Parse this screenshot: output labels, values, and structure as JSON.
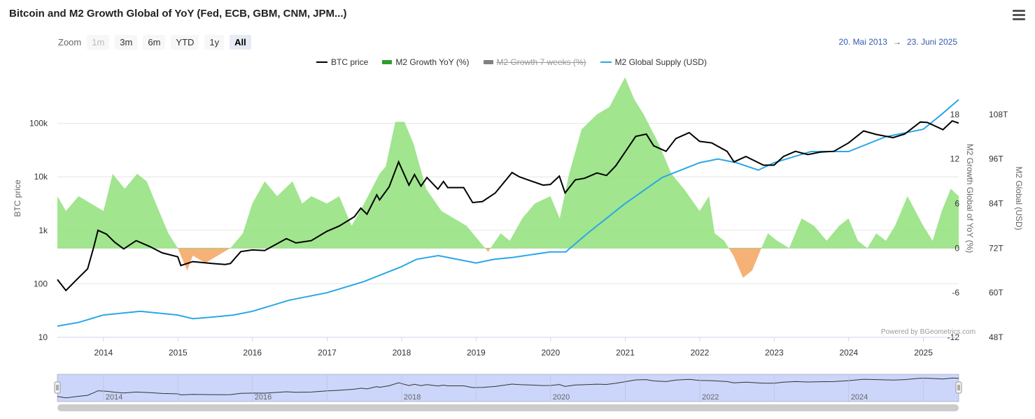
{
  "header": {
    "title": "Bitcoin and M2 Growth Global of YoY (Fed, ECB, GBM, CNM, JPM...)"
  },
  "zoom": {
    "label": "Zoom",
    "buttons": [
      {
        "label": "1m",
        "state": "disabled"
      },
      {
        "label": "3m",
        "state": "normal"
      },
      {
        "label": "6m",
        "state": "normal"
      },
      {
        "label": "YTD",
        "state": "normal"
      },
      {
        "label": "1y",
        "state": "normal"
      },
      {
        "label": "All",
        "state": "active"
      }
    ]
  },
  "range": {
    "from": "20. Mai 2013",
    "arrow": "→",
    "to": "23. Juni 2025"
  },
  "credit": "Powered by BGeometrics.com",
  "chart_data": {
    "type": "line",
    "title": "Bitcoin and M2 Growth Global of YoY (Fed, ECB, GBM, CNM, JPM...)",
    "legend_position": "top-center",
    "grid": true,
    "x_axis": {
      "type": "date",
      "range": [
        "2013-05-20",
        "2025-06-23"
      ],
      "tick_labels": [
        "2014",
        "2015",
        "2016",
        "2017",
        "2018",
        "2019",
        "2020",
        "2021",
        "2022",
        "2023",
        "2024",
        "2025"
      ]
    },
    "y_axes": [
      {
        "id": "btc",
        "label": "BTC price",
        "scale": "log",
        "side": "left",
        "range": [
          10,
          1000000
        ],
        "tick_labels": [
          "10",
          "100",
          "1k",
          "10k",
          "100k"
        ]
      },
      {
        "id": "m2yoy",
        "label": "M2 Growth Global of YoY (%)",
        "scale": "linear",
        "side": "right",
        "range": [
          -12,
          24
        ],
        "tick_labels": [
          "-12",
          "-6",
          "0",
          "6",
          "12",
          "18"
        ]
      },
      {
        "id": "m2supply",
        "label": "M2 Global (USD)",
        "scale": "linear",
        "side": "right",
        "range": [
          48,
          120
        ],
        "unit": "T",
        "tick_labels": [
          "48T",
          "60T",
          "72T",
          "84T",
          "96T",
          "108T"
        ]
      }
    ],
    "series": [
      {
        "name": "BTC price",
        "axis": "btc",
        "type": "line",
        "color": "#000000",
        "visible": true,
        "points": [
          [
            "2013-05-20",
            120
          ],
          [
            "2013-07-01",
            75
          ],
          [
            "2013-09-01",
            130
          ],
          [
            "2013-10-15",
            190
          ],
          [
            "2013-11-15",
            500
          ],
          [
            "2013-12-05",
            1000
          ],
          [
            "2014-01-15",
            850
          ],
          [
            "2014-02-25",
            600
          ],
          [
            "2014-04-10",
            450
          ],
          [
            "2014-06-10",
            640
          ],
          [
            "2014-08-15",
            500
          ],
          [
            "2014-10-15",
            380
          ],
          [
            "2014-12-31",
            320
          ],
          [
            "2015-01-15",
            220
          ],
          [
            "2015-03-15",
            260
          ],
          [
            "2015-06-15",
            240
          ],
          [
            "2015-08-20",
            230
          ],
          [
            "2015-09-15",
            240
          ],
          [
            "2015-11-05",
            400
          ],
          [
            "2015-12-31",
            430
          ],
          [
            "2016-03-01",
            420
          ],
          [
            "2016-06-15",
            700
          ],
          [
            "2016-08-01",
            580
          ],
          [
            "2016-10-15",
            640
          ],
          [
            "2016-12-31",
            960
          ],
          [
            "2017-03-01",
            1200
          ],
          [
            "2017-05-15",
            1800
          ],
          [
            "2017-06-15",
            2600
          ],
          [
            "2017-07-15",
            2000
          ],
          [
            "2017-09-01",
            4600
          ],
          [
            "2017-09-15",
            3700
          ],
          [
            "2017-11-01",
            6500
          ],
          [
            "2017-12-17",
            19000
          ],
          [
            "2018-02-06",
            7000
          ],
          [
            "2018-03-05",
            11000
          ],
          [
            "2018-04-06",
            6700
          ],
          [
            "2018-05-05",
            9700
          ],
          [
            "2018-06-28",
            5900
          ],
          [
            "2018-07-25",
            8200
          ],
          [
            "2018-08-15",
            6300
          ],
          [
            "2018-11-01",
            6300
          ],
          [
            "2018-12-15",
            3300
          ],
          [
            "2019-02-01",
            3450
          ],
          [
            "2019-04-05",
            5000
          ],
          [
            "2019-06-26",
            12000
          ],
          [
            "2019-08-01",
            10000
          ],
          [
            "2019-09-30",
            8300
          ],
          [
            "2019-11-25",
            7000
          ],
          [
            "2019-12-31",
            7200
          ],
          [
            "2020-02-13",
            10300
          ],
          [
            "2020-03-12",
            5000
          ],
          [
            "2020-05-01",
            8800
          ],
          [
            "2020-06-15",
            9400
          ],
          [
            "2020-08-15",
            11800
          ],
          [
            "2020-10-01",
            10600
          ],
          [
            "2020-11-15",
            16000
          ],
          [
            "2020-12-31",
            29000
          ],
          [
            "2021-02-21",
            57000
          ],
          [
            "2021-04-14",
            63000
          ],
          [
            "2021-05-20",
            38000
          ],
          [
            "2021-07-20",
            30000
          ],
          [
            "2021-09-06",
            52000
          ],
          [
            "2021-11-10",
            67000
          ],
          [
            "2021-12-31",
            46000
          ],
          [
            "2022-03-01",
            43000
          ],
          [
            "2022-05-15",
            30000
          ],
          [
            "2022-06-18",
            19000
          ],
          [
            "2022-08-15",
            24000
          ],
          [
            "2022-11-09",
            16500
          ],
          [
            "2022-12-31",
            16500
          ],
          [
            "2023-02-15",
            24000
          ],
          [
            "2023-04-15",
            30000
          ],
          [
            "2023-06-15",
            26000
          ],
          [
            "2023-08-15",
            29000
          ],
          [
            "2023-10-20",
            30000
          ],
          [
            "2023-12-31",
            43000
          ],
          [
            "2024-03-14",
            72000
          ],
          [
            "2024-05-15",
            62000
          ],
          [
            "2024-08-05",
            54000
          ],
          [
            "2024-10-01",
            63000
          ],
          [
            "2024-12-17",
            106000
          ],
          [
            "2025-01-20",
            104000
          ],
          [
            "2025-04-07",
            76000
          ],
          [
            "2025-05-22",
            111000
          ],
          [
            "2025-06-23",
            101000
          ]
        ]
      },
      {
        "name": "M2 Growth YoY (%)",
        "axis": "m2yoy",
        "type": "area",
        "visible": true,
        "positive_color": "#90e07b",
        "negative_color": "#f5a868",
        "points": [
          [
            "2013-05-20",
            7
          ],
          [
            "2013-07-01",
            5
          ],
          [
            "2013-09-01",
            7
          ],
          [
            "2013-11-01",
            6
          ],
          [
            "2014-01-01",
            5
          ],
          [
            "2014-02-15",
            10
          ],
          [
            "2014-04-15",
            8
          ],
          [
            "2014-06-15",
            10
          ],
          [
            "2014-08-01",
            9
          ],
          [
            "2014-09-15",
            6
          ],
          [
            "2014-11-15",
            2
          ],
          [
            "2014-12-31",
            0
          ],
          [
            "2015-02-15",
            -3
          ],
          [
            "2015-03-15",
            -1
          ],
          [
            "2015-05-15",
            -2
          ],
          [
            "2015-07-15",
            -1
          ],
          [
            "2015-09-15",
            0
          ],
          [
            "2015-11-15",
            2
          ],
          [
            "2015-12-31",
            6
          ],
          [
            "2016-03-01",
            9
          ],
          [
            "2016-05-01",
            7
          ],
          [
            "2016-07-15",
            9
          ],
          [
            "2016-09-01",
            6
          ],
          [
            "2016-10-15",
            7
          ],
          [
            "2016-12-31",
            6
          ],
          [
            "2017-03-01",
            7
          ],
          [
            "2017-05-01",
            3
          ],
          [
            "2017-07-01",
            6
          ],
          [
            "2017-09-15",
            10
          ],
          [
            "2017-10-15",
            11
          ],
          [
            "2017-12-01",
            17
          ],
          [
            "2018-01-15",
            17
          ],
          [
            "2018-03-01",
            14
          ],
          [
            "2018-05-01",
            8
          ],
          [
            "2018-07-15",
            5
          ],
          [
            "2018-09-15",
            4
          ],
          [
            "2018-11-15",
            3
          ],
          [
            "2019-01-15",
            1
          ],
          [
            "2019-03-01",
            -0.5
          ],
          [
            "2019-05-01",
            2
          ],
          [
            "2019-06-15",
            1
          ],
          [
            "2019-08-15",
            4
          ],
          [
            "2019-10-15",
            6
          ],
          [
            "2019-12-31",
            7
          ],
          [
            "2020-02-15",
            4
          ],
          [
            "2020-04-01",
            10
          ],
          [
            "2020-06-01",
            16
          ],
          [
            "2020-08-15",
            18
          ],
          [
            "2020-10-15",
            19
          ],
          [
            "2020-12-31",
            23
          ],
          [
            "2021-02-15",
            20
          ],
          [
            "2021-04-01",
            18
          ],
          [
            "2021-06-15",
            14
          ],
          [
            "2021-08-15",
            10
          ],
          [
            "2021-10-15",
            8
          ],
          [
            "2021-12-31",
            5
          ],
          [
            "2022-02-15",
            7
          ],
          [
            "2022-03-15",
            2
          ],
          [
            "2022-05-01",
            1
          ],
          [
            "2022-06-15",
            -1
          ],
          [
            "2022-08-01",
            -4
          ],
          [
            "2022-09-15",
            -3
          ],
          [
            "2022-10-15",
            -1
          ],
          [
            "2022-12-01",
            2
          ],
          [
            "2023-01-15",
            1
          ],
          [
            "2023-03-15",
            0
          ],
          [
            "2023-05-15",
            4
          ],
          [
            "2023-07-15",
            3
          ],
          [
            "2023-09-15",
            1
          ],
          [
            "2023-11-15",
            3
          ],
          [
            "2023-12-31",
            4
          ],
          [
            "2024-02-15",
            1
          ],
          [
            "2024-04-01",
            0
          ],
          [
            "2024-05-15",
            2
          ],
          [
            "2024-07-01",
            1
          ],
          [
            "2024-08-15",
            3
          ],
          [
            "2024-10-15",
            7
          ],
          [
            "2024-12-31",
            3
          ],
          [
            "2025-02-15",
            1
          ],
          [
            "2025-04-01",
            5
          ],
          [
            "2025-05-15",
            8
          ],
          [
            "2025-06-23",
            7
          ]
        ]
      },
      {
        "name": "M2 Growth 7 weeks (%)",
        "axis": "m2yoy",
        "type": "area",
        "color": "#808080",
        "visible": false
      },
      {
        "name": "M2 Global Supply (USD)",
        "axis": "m2supply",
        "type": "line",
        "color": "#2aa7e6",
        "visible": true,
        "points": [
          [
            "2013-05-20",
            51
          ],
          [
            "2013-09-01",
            52
          ],
          [
            "2013-12-31",
            54
          ],
          [
            "2014-06-30",
            55
          ],
          [
            "2014-12-31",
            54
          ],
          [
            "2015-03-15",
            53
          ],
          [
            "2015-06-30",
            53.5
          ],
          [
            "2015-09-30",
            54
          ],
          [
            "2015-12-31",
            55
          ],
          [
            "2016-06-30",
            58
          ],
          [
            "2016-12-31",
            60
          ],
          [
            "2017-06-30",
            63
          ],
          [
            "2017-12-31",
            67
          ],
          [
            "2018-03-15",
            69
          ],
          [
            "2018-06-30",
            70
          ],
          [
            "2018-12-31",
            68
          ],
          [
            "2019-03-31",
            69
          ],
          [
            "2019-06-30",
            69.5
          ],
          [
            "2019-12-31",
            71
          ],
          [
            "2020-03-15",
            71
          ],
          [
            "2020-06-30",
            76
          ],
          [
            "2020-12-31",
            84
          ],
          [
            "2021-06-30",
            91
          ],
          [
            "2021-12-31",
            95
          ],
          [
            "2022-03-31",
            96
          ],
          [
            "2022-06-30",
            95
          ],
          [
            "2022-10-15",
            93
          ],
          [
            "2022-12-31",
            95
          ],
          [
            "2023-06-30",
            98
          ],
          [
            "2023-12-31",
            98
          ],
          [
            "2024-06-30",
            102
          ],
          [
            "2024-12-31",
            104
          ],
          [
            "2025-03-31",
            108
          ],
          [
            "2025-06-23",
            112
          ]
        ]
      }
    ],
    "navigator": {
      "tick_labels": [
        "2014",
        "2016",
        "2018",
        "2020",
        "2022",
        "2024"
      ]
    }
  },
  "colors": {
    "btc": "#000000",
    "m2_positive": "#90e07b",
    "m2_negative": "#f5a868",
    "m2_supply": "#2aa7e6",
    "navigator_fill": "#ccd6fa",
    "range_link": "#335cad"
  }
}
